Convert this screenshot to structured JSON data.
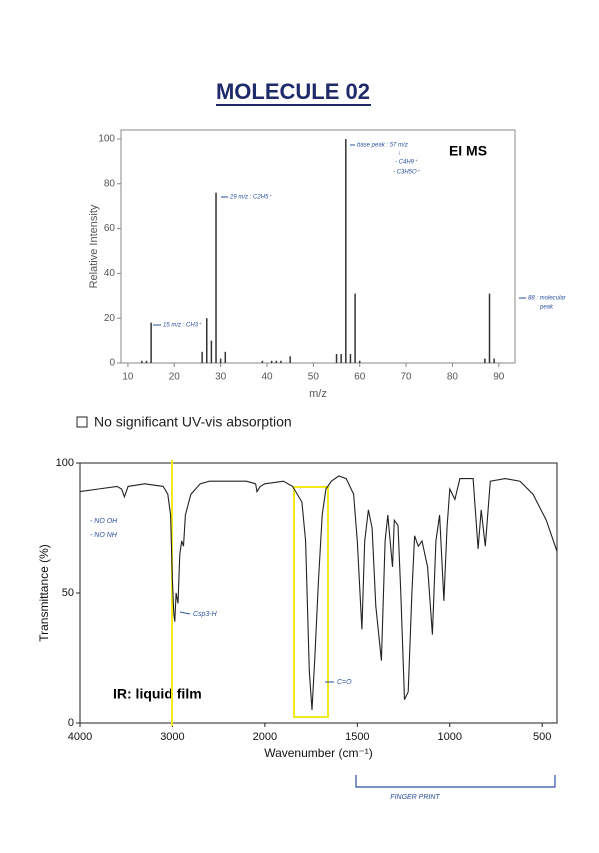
{
  "title": "MOLECULE 02",
  "note": "No significant UV-vis absorption",
  "chart_data": [
    {
      "type": "bar",
      "label": "EI MS",
      "xlabel": "m/z",
      "ylabel": "Relative Intensity",
      "color": "#333333",
      "x": [
        13,
        14,
        15,
        26,
        27,
        28,
        29,
        30,
        31,
        39,
        41,
        42,
        43,
        45,
        55,
        56,
        57,
        58,
        59,
        60,
        87,
        88,
        89
      ],
      "values": [
        1,
        1,
        18,
        5,
        20,
        10,
        76,
        2,
        5,
        1,
        1,
        1,
        1,
        3,
        4,
        4,
        100,
        4,
        31,
        1,
        2,
        31,
        2
      ],
      "xlim": [
        8.5,
        93.5
      ],
      "ylim": [
        0,
        104
      ],
      "xticks": [
        10,
        20,
        30,
        40,
        50,
        60,
        70,
        80,
        90
      ],
      "yticks": [
        0,
        20,
        40,
        60,
        80,
        100
      ],
      "annotations": [
        "15 m/z : CH3⁺",
        "29 m/z : C2H5⁺",
        "base peak : 57 m/z",
        "↓",
        "- C4H9⁺",
        "- C3H5O⁺",
        "88 : molecular",
        "peak"
      ]
    },
    {
      "type": "line",
      "label": "IR: liquid film",
      "xlabel": "Wavenumber (cm⁻¹)",
      "ylabel": "Transmittance (%)",
      "color": "#222222",
      "x": [
        4000,
        3800,
        3600,
        3550,
        3520,
        3480,
        3300,
        3100,
        3050,
        3020,
        3000,
        2985,
        2975,
        2960,
        2940,
        2920,
        2900,
        2880,
        2860,
        2800,
        2750,
        2700,
        2600,
        2400,
        2200,
        2100,
        2085,
        2050,
        2000,
        1900,
        1850,
        1800,
        1780,
        1760,
        1745,
        1730,
        1710,
        1690,
        1670,
        1640,
        1600,
        1560,
        1520,
        1500,
        1475,
        1460,
        1440,
        1420,
        1400,
        1370,
        1350,
        1335,
        1310,
        1300,
        1280,
        1265,
        1245,
        1225,
        1205,
        1190,
        1170,
        1150,
        1120,
        1094,
        1075,
        1055,
        1032,
        1015,
        1000,
        972,
        945,
        874,
        847,
        830,
        808,
        781,
        700,
        620,
        550,
        478,
        420
      ],
      "values": [
        89,
        90,
        91,
        90,
        87,
        91,
        92,
        91,
        88,
        80,
        55,
        42,
        39,
        50,
        46,
        65,
        70,
        68,
        80,
        88,
        90,
        92,
        93,
        93,
        93,
        92,
        89,
        91,
        92,
        93,
        91,
        85,
        70,
        20,
        5,
        25,
        55,
        80,
        90,
        93,
        95,
        94,
        88,
        70,
        36,
        70,
        82,
        75,
        45,
        24,
        70,
        80,
        60,
        78,
        76,
        50,
        9,
        12,
        50,
        72,
        68,
        70,
        60,
        34,
        70,
        80,
        47,
        75,
        90,
        86,
        94,
        94,
        67,
        82,
        68,
        93,
        94,
        93,
        88,
        78,
        66
      ],
      "xlim": [
        4000,
        420
      ],
      "ylim": [
        0,
        100
      ],
      "xticks": [
        4000,
        3000,
        2000,
        1500,
        1000,
        500
      ],
      "yticks": [
        0,
        50,
        100
      ],
      "annotations": [
        "- NO OH",
        "- NO NH",
        "Csp3-H",
        "C=O",
        "FINGER PRINT"
      ]
    }
  ]
}
